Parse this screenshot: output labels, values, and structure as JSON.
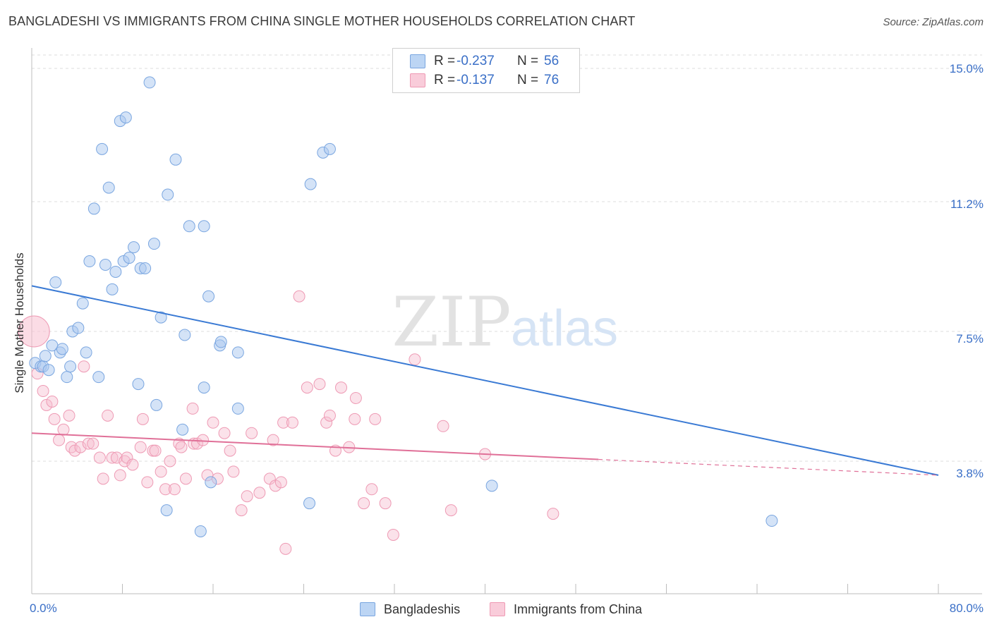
{
  "title": "BANGLADESHI VS IMMIGRANTS FROM CHINA SINGLE MOTHER HOUSEHOLDS CORRELATION CHART",
  "source": "Source: ZipAtlas.com",
  "watermark": {
    "zip": "ZIP",
    "atlas": "atlas"
  },
  "legend": {
    "rows": [
      {
        "r_label": "R =",
        "r_value": "-0.237",
        "n_label": "N =",
        "n_value": "56"
      },
      {
        "r_label": "R =",
        "r_value": "-0.137",
        "n_label": "N =",
        "n_value": "76"
      }
    ]
  },
  "chart_data": {
    "type": "scatter",
    "ylabel": "Single Mother Households",
    "xlim": [
      0,
      80
    ],
    "ylim": [
      0,
      15.7
    ],
    "x_tick_labels": [
      "0.0%",
      "80.0%"
    ],
    "y_ticks": [
      {
        "value": 3.8,
        "label": "3.8%"
      },
      {
        "value": 7.5,
        "label": "7.5%"
      },
      {
        "value": 11.2,
        "label": "11.2%"
      },
      {
        "value": 15.0,
        "label": "15.0%"
      }
    ],
    "grid": "horizontal-dashed",
    "series": [
      {
        "name": "Bangladeshis",
        "color": "#a9c8f0",
        "stroke": "#7aa6e0",
        "trend_color": "#3a7ad4",
        "trend": {
          "x0": 0,
          "y0": 8.8,
          "x1": 80,
          "y1": 3.4,
          "solid_until": 80
        },
        "points": [
          [
            0.3,
            6.6
          ],
          [
            0.8,
            6.5
          ],
          [
            1.0,
            6.5
          ],
          [
            1.2,
            6.8
          ],
          [
            1.5,
            6.4
          ],
          [
            1.8,
            7.1
          ],
          [
            2.1,
            8.9
          ],
          [
            2.5,
            6.9
          ],
          [
            2.7,
            7.0
          ],
          [
            3.1,
            6.2
          ],
          [
            3.4,
            6.5
          ],
          [
            3.6,
            7.5
          ],
          [
            4.1,
            7.6
          ],
          [
            4.5,
            8.3
          ],
          [
            4.8,
            6.9
          ],
          [
            5.1,
            9.5
          ],
          [
            5.5,
            11.0
          ],
          [
            5.9,
            6.2
          ],
          [
            6.2,
            12.7
          ],
          [
            6.5,
            9.4
          ],
          [
            6.8,
            11.6
          ],
          [
            7.1,
            8.7
          ],
          [
            7.4,
            9.2
          ],
          [
            7.8,
            13.5
          ],
          [
            8.1,
            9.5
          ],
          [
            8.3,
            13.6
          ],
          [
            8.6,
            9.6
          ],
          [
            9.0,
            9.9
          ],
          [
            9.4,
            6.0
          ],
          [
            9.6,
            9.3
          ],
          [
            10.0,
            9.3
          ],
          [
            10.4,
            14.6
          ],
          [
            10.8,
            10.0
          ],
          [
            11.0,
            5.4
          ],
          [
            11.4,
            7.9
          ],
          [
            11.9,
            2.4
          ],
          [
            12.0,
            11.4
          ],
          [
            12.7,
            12.4
          ],
          [
            13.3,
            4.7
          ],
          [
            13.5,
            7.4
          ],
          [
            13.9,
            10.5
          ],
          [
            14.9,
            1.8
          ],
          [
            15.2,
            5.9
          ],
          [
            15.2,
            10.5
          ],
          [
            15.6,
            8.5
          ],
          [
            15.8,
            3.2
          ],
          [
            16.6,
            7.1
          ],
          [
            16.7,
            7.2
          ],
          [
            18.2,
            6.9
          ],
          [
            18.2,
            5.3
          ],
          [
            24.5,
            2.6
          ],
          [
            24.6,
            11.7
          ],
          [
            25.7,
            12.6
          ],
          [
            26.3,
            12.7
          ],
          [
            40.6,
            3.1
          ],
          [
            65.3,
            2.1
          ]
        ]
      },
      {
        "name": "Immigrants from China",
        "color": "#f7bfd0",
        "stroke": "#ee9ab4",
        "trend_color": "#e07098",
        "trend": {
          "x0": 0,
          "y0": 4.6,
          "x1": 80,
          "y1": 3.4,
          "solid_until": 50
        },
        "big_point": {
          "x": 0.2,
          "y": 7.5
        },
        "points": [
          [
            0.5,
            6.3
          ],
          [
            1.0,
            5.8
          ],
          [
            1.3,
            5.4
          ],
          [
            1.8,
            5.5
          ],
          [
            2.0,
            5.0
          ],
          [
            2.4,
            4.4
          ],
          [
            2.8,
            4.7
          ],
          [
            3.3,
            5.1
          ],
          [
            3.5,
            4.2
          ],
          [
            3.8,
            4.1
          ],
          [
            4.3,
            4.2
          ],
          [
            4.6,
            6.5
          ],
          [
            5.0,
            4.3
          ],
          [
            5.4,
            4.3
          ],
          [
            6.0,
            3.9
          ],
          [
            6.3,
            3.3
          ],
          [
            6.7,
            5.1
          ],
          [
            7.1,
            3.9
          ],
          [
            7.5,
            3.9
          ],
          [
            7.8,
            3.4
          ],
          [
            8.2,
            3.8
          ],
          [
            8.4,
            3.9
          ],
          [
            8.9,
            3.7
          ],
          [
            9.6,
            4.2
          ],
          [
            9.8,
            5.0
          ],
          [
            10.2,
            3.2
          ],
          [
            10.7,
            4.1
          ],
          [
            10.9,
            4.1
          ],
          [
            11.4,
            3.5
          ],
          [
            11.8,
            3.0
          ],
          [
            12.2,
            3.8
          ],
          [
            12.6,
            3.0
          ],
          [
            13.0,
            4.3
          ],
          [
            13.2,
            4.2
          ],
          [
            13.6,
            3.3
          ],
          [
            14.2,
            5.3
          ],
          [
            14.3,
            4.3
          ],
          [
            14.6,
            4.3
          ],
          [
            15.1,
            4.4
          ],
          [
            15.5,
            3.4
          ],
          [
            16.0,
            4.9
          ],
          [
            16.4,
            3.3
          ],
          [
            17.0,
            4.6
          ],
          [
            17.5,
            4.1
          ],
          [
            17.8,
            3.5
          ],
          [
            18.5,
            2.4
          ],
          [
            19.0,
            2.8
          ],
          [
            19.4,
            4.6
          ],
          [
            20.1,
            2.9
          ],
          [
            21.0,
            3.3
          ],
          [
            21.3,
            4.4
          ],
          [
            21.5,
            3.1
          ],
          [
            22.0,
            3.2
          ],
          [
            22.2,
            4.9
          ],
          [
            22.4,
            1.3
          ],
          [
            23.0,
            4.9
          ],
          [
            23.6,
            8.5
          ],
          [
            24.3,
            5.9
          ],
          [
            25.4,
            6.0
          ],
          [
            26.0,
            4.9
          ],
          [
            26.3,
            5.1
          ],
          [
            26.8,
            4.1
          ],
          [
            27.3,
            5.9
          ],
          [
            28.0,
            4.2
          ],
          [
            28.5,
            5.0
          ],
          [
            28.6,
            5.6
          ],
          [
            29.3,
            2.6
          ],
          [
            30.0,
            3.0
          ],
          [
            30.3,
            5.0
          ],
          [
            31.2,
            2.6
          ],
          [
            31.9,
            1.7
          ],
          [
            33.8,
            6.7
          ],
          [
            36.3,
            4.8
          ],
          [
            37.0,
            2.4
          ],
          [
            40.0,
            4.0
          ],
          [
            46.0,
            2.3
          ]
        ]
      }
    ]
  }
}
